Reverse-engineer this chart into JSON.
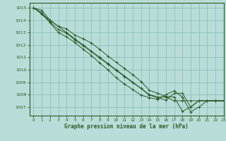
{
  "background_color": "#b8ddd8",
  "grid_color": "#8fbfbb",
  "line_color": "#2d5a27",
  "xlabel": "Graphe pression niveau de la mer (hPa)",
  "xlabel_color": "#2d5a27",
  "ylim": [
    1006.3,
    1015.4
  ],
  "xlim": [
    -0.5,
    23
  ],
  "yticks": [
    1007,
    1008,
    1009,
    1010,
    1011,
    1012,
    1013,
    1014,
    1015
  ],
  "xticks": [
    0,
    1,
    2,
    3,
    4,
    5,
    6,
    7,
    8,
    9,
    10,
    11,
    12,
    13,
    14,
    15,
    16,
    17,
    18,
    19,
    20,
    21,
    22,
    23
  ],
  "series": [
    [
      1015.0,
      1014.8,
      1014.0,
      1013.5,
      1013.3,
      1012.8,
      1012.5,
      1012.15,
      1011.65,
      1011.1,
      1010.6,
      1010.1,
      1009.6,
      1009.05,
      1008.35,
      1008.1,
      1007.85,
      1007.8,
      1006.65,
      1007.0,
      1007.5,
      1007.5,
      1007.5,
      1007.5
    ],
    [
      1015.0,
      1014.6,
      1013.85,
      1013.25,
      1012.95,
      1012.4,
      1011.95,
      1011.45,
      1010.95,
      1010.45,
      1009.95,
      1009.45,
      1008.95,
      1008.5,
      1007.95,
      1007.75,
      1007.55,
      1008.1,
      1008.1,
      1007.0,
      1007.5,
      1007.5,
      1007.5,
      1007.5
    ],
    [
      1015.0,
      1014.5,
      1013.8,
      1013.0,
      1012.65,
      1012.2,
      1011.65,
      1011.15,
      1010.55,
      1010.0,
      1009.35,
      1008.85,
      1008.4,
      1007.95,
      1007.75,
      1007.6,
      1008.0,
      1008.3,
      1007.8,
      1006.6,
      1007.0,
      1007.5,
      1007.5,
      1007.5
    ],
    [
      1015.0,
      1014.5,
      1014.0,
      1013.5,
      1013.0,
      1012.5,
      1012.0,
      1011.5,
      1011.0,
      1010.5,
      1010.0,
      1009.5,
      1009.0,
      1008.5,
      1008.0,
      1007.8,
      1007.8,
      1007.5,
      1007.5,
      1007.5,
      1007.5,
      1007.5,
      1007.5,
      1007.5
    ]
  ]
}
